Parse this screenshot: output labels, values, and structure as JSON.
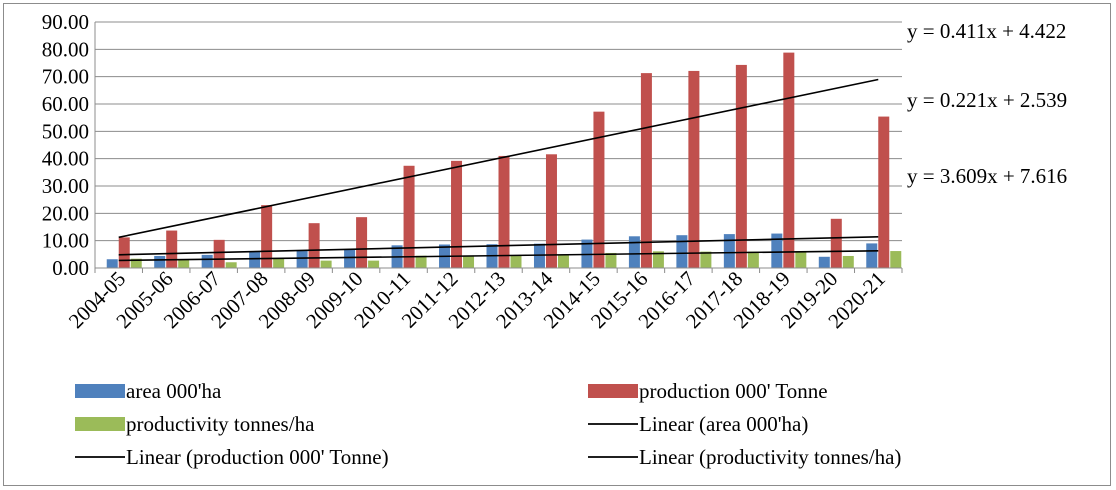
{
  "chart_data": {
    "type": "bar",
    "categories": [
      "2004-05",
      "2005-06",
      "2006-07",
      "2007-08",
      "2008-09",
      "2009-10",
      "2010-11",
      "2011-12",
      "2012-13",
      "2013-14",
      "2014-15",
      "2015-16",
      "2016-17",
      "2017-18",
      "2018-19",
      "2019-20",
      "2020-21"
    ],
    "series": [
      {
        "name": "area 000'ha",
        "color": "#4f81bd",
        "values": [
          3.2,
          4.4,
          4.8,
          6.2,
          6.2,
          6.8,
          8.3,
          8.6,
          8.7,
          8.9,
          10.4,
          11.6,
          12.0,
          12.4,
          12.6,
          4.1,
          9.0
        ]
      },
      {
        "name": "production 000' Tonne",
        "color": "#c0504d",
        "values": [
          11.2,
          13.7,
          10.3,
          23.0,
          16.4,
          18.6,
          37.4,
          39.2,
          41.0,
          41.6,
          57.2,
          71.3,
          72.1,
          74.3,
          78.8,
          18.0,
          55.4
        ]
      },
      {
        "name": "productivity tonnes/ha",
        "color": "#9bbb59",
        "values": [
          3.4,
          3.1,
          2.1,
          3.7,
          2.7,
          2.7,
          4.5,
          4.6,
          4.7,
          4.7,
          5.5,
          6.1,
          6.0,
          6.0,
          6.2,
          4.4,
          6.2
        ]
      }
    ],
    "trendlines": [
      {
        "name": "Linear (area 000'ha)",
        "series": "area 000'ha",
        "equation": "y = 0.411x + 4.422",
        "slope": 0.411,
        "intercept": 4.422
      },
      {
        "name": "Linear (production 000' Tonne)",
        "series": "production 000' Tonne",
        "equation": "y = 3.609x + 7.616",
        "slope": 3.609,
        "intercept": 7.616
      },
      {
        "name": "Linear (productivity tonnes/ha)",
        "series": "productivity tonnes/ha",
        "equation": "y = 0.221x + 2.539",
        "slope": 0.221,
        "intercept": 2.539
      }
    ],
    "title": "",
    "xlabel": "",
    "ylabel": "",
    "ylim": [
      0,
      90
    ],
    "yticks": [
      "0.00",
      "10.00",
      "20.00",
      "30.00",
      "40.00",
      "50.00",
      "60.00",
      "70.00",
      "80.00",
      "90.00"
    ],
    "grid": "horizontal",
    "legend": "bottom",
    "legend_entries": [
      "area 000'ha",
      "production 000' Tonne",
      "productivity tonnes/ha",
      "Linear (area 000'ha)",
      "Linear (production 000' Tonne)",
      "Linear (productivity tonnes/ha)"
    ],
    "annotations": [
      "y = 0.411x + 4.422",
      "y = 0.221x + 2.539",
      "y = 3.609x + 7.616"
    ]
  }
}
